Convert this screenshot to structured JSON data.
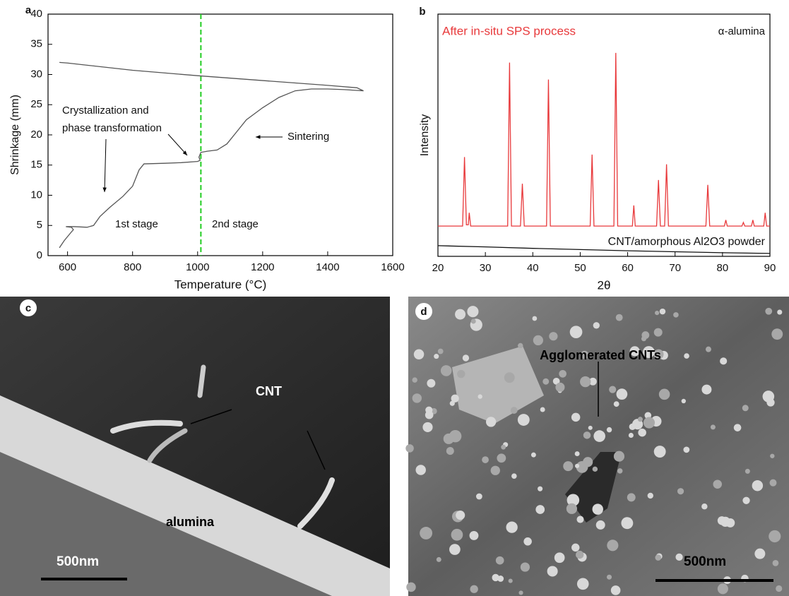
{
  "chart_data": [
    {
      "type": "line",
      "panel_label": "a",
      "x_label": "Temperature (°C)",
      "y_label": "Shrinkage (mm)",
      "xlim": [
        540,
        1600
      ],
      "xticks": [
        600,
        800,
        1000,
        1200,
        1400,
        1600
      ],
      "ylim": [
        0,
        40
      ],
      "yticks": [
        0,
        5,
        10,
        15,
        20,
        25,
        30,
        35,
        40
      ],
      "vline": 1010,
      "vline_color": "#22cc22",
      "annotations": [
        "Crystallization and",
        "phase transformation",
        "Sintering",
        "1st stage",
        "2nd stage"
      ],
      "series": [
        {
          "color": "#555555",
          "x": [
            575,
            590,
            610,
            618,
            612,
            595,
            620,
            660,
            680,
            700,
            730,
            770,
            800,
            820,
            835,
            900,
            950,
            1000,
            1008,
            1004,
            1010,
            1030,
            1060,
            1090,
            1120,
            1150,
            1200,
            1250,
            1300,
            1350,
            1400,
            1450,
            1510,
            1490,
            1400,
            1200,
            1000,
            800,
            600,
            575
          ],
          "values": [
            1.3,
            2.5,
            3.8,
            4.3,
            4.7,
            4.8,
            4.8,
            4.7,
            5.0,
            6.5,
            8.0,
            9.8,
            11.5,
            14.2,
            15.2,
            15.3,
            15.4,
            15.6,
            15.8,
            16.3,
            17.1,
            17.3,
            17.5,
            18.5,
            20.5,
            22.5,
            24.5,
            26.2,
            27.3,
            27.6,
            27.6,
            27.5,
            27.3,
            27.8,
            28.2,
            29.0,
            29.8,
            30.7,
            31.9,
            32.0
          ]
        }
      ]
    },
    {
      "type": "line",
      "panel_label": "b",
      "x_label": "2θ",
      "y_label": "Intensity",
      "xlim": [
        20,
        90
      ],
      "xticks": [
        20,
        30,
        40,
        50,
        60,
        70,
        80,
        90
      ],
      "ylim": [
        0,
        100
      ],
      "annotations": [
        "α-alumina"
      ],
      "series": [
        {
          "name": "After in-situ SPS process",
          "color": "#e8393b",
          "x": [
            20,
            25.2,
            25.6,
            26.0,
            26.4,
            26.6,
            26.9,
            34.7,
            35.1,
            35.5,
            37.4,
            37.8,
            38.2,
            42.9,
            43.3,
            43.7,
            52.1,
            52.5,
            52.9,
            57.1,
            57.5,
            57.9,
            61.0,
            61.3,
            61.6,
            66.1,
            66.5,
            66.9,
            67.8,
            68.2,
            68.6,
            76.5,
            76.9,
            77.3,
            80.4,
            80.7,
            81.0,
            84.1,
            84.4,
            84.7,
            86.1,
            86.4,
            86.7,
            88.7,
            89.0,
            89.3,
            90
          ],
          "values": [
            12.5,
            12.5,
            41,
            13,
            13,
            18,
            12.5,
            12.5,
            80,
            12.5,
            12.5,
            30,
            12.5,
            12.5,
            73,
            12.5,
            12.5,
            42,
            12.5,
            12.5,
            84,
            12.5,
            12.5,
            21,
            12.5,
            12.5,
            31.5,
            12.5,
            12.5,
            38,
            12.5,
            12.5,
            29.5,
            12.5,
            12.5,
            15,
            12.5,
            12.5,
            14,
            12.5,
            12.5,
            15,
            12.5,
            12.5,
            18,
            12.5,
            12.5
          ]
        },
        {
          "name": "CNT/amorphous Al2O3 powder",
          "color": "#111111",
          "x": [
            20,
            30,
            40,
            50,
            60,
            70,
            80,
            90
          ],
          "values": [
            4.4,
            3.9,
            3.3,
            2.8,
            2.3,
            1.9,
            1.5,
            1.2
          ]
        }
      ]
    }
  ],
  "panels": [
    {
      "label": "c",
      "texts": [
        "CNT",
        "alumina"
      ],
      "scale_bar": "500nm"
    },
    {
      "label": "d",
      "texts": [
        "Agglomerated CNTs"
      ],
      "scale_bar": "500nm"
    }
  ]
}
